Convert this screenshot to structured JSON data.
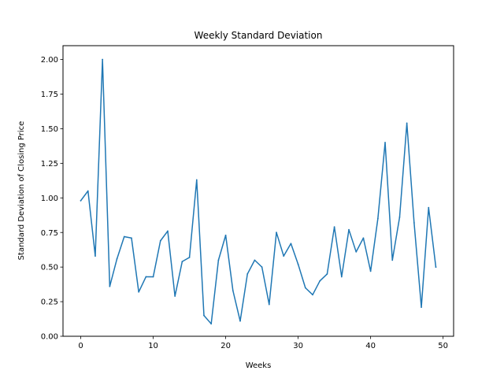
{
  "chart_data": {
    "type": "line",
    "title": "Weekly Standard Deviation",
    "xlabel": "Weeks",
    "ylabel": "Standard Deviation of Closing Price",
    "xlim": [
      -2.45,
      51.45
    ],
    "ylim": [
      0.0,
      2.1
    ],
    "grid": false,
    "x_ticks": [
      0,
      10,
      20,
      30,
      40,
      50
    ],
    "x_tick_labels": [
      "0",
      "10",
      "20",
      "30",
      "40",
      "50"
    ],
    "y_ticks": [
      0.0,
      0.25,
      0.5,
      0.75,
      1.0,
      1.25,
      1.5,
      1.75,
      2.0
    ],
    "y_tick_labels": [
      "0.00",
      "0.25",
      "0.50",
      "0.75",
      "1.00",
      "1.25",
      "1.50",
      "1.75",
      "2.00"
    ],
    "line_color": "#1f77b4",
    "series": [
      {
        "x": [
          0,
          1,
          2,
          3,
          4,
          5,
          6,
          7,
          8,
          9,
          10,
          11,
          12,
          13,
          14,
          15,
          16,
          17,
          18,
          19,
          20,
          21,
          22,
          23,
          24,
          25,
          26,
          27,
          28,
          29,
          30,
          31,
          32,
          33,
          34,
          35,
          36,
          37,
          38,
          39,
          40,
          41,
          42,
          43,
          44,
          45,
          46,
          47,
          48,
          49
        ],
        "values": [
          0.98,
          1.05,
          0.58,
          2.0,
          0.36,
          0.56,
          0.72,
          0.71,
          0.32,
          0.43,
          0.43,
          0.69,
          0.76,
          0.29,
          0.54,
          0.57,
          1.13,
          0.15,
          0.09,
          0.55,
          0.73,
          0.33,
          0.11,
          0.45,
          0.55,
          0.5,
          0.23,
          0.75,
          0.58,
          0.67,
          0.52,
          0.35,
          0.3,
          0.4,
          0.45,
          0.79,
          0.43,
          0.77,
          0.61,
          0.71,
          0.47,
          0.85,
          1.4,
          0.55,
          0.86,
          1.54,
          0.82,
          0.21,
          0.93,
          0.5
        ]
      }
    ]
  }
}
